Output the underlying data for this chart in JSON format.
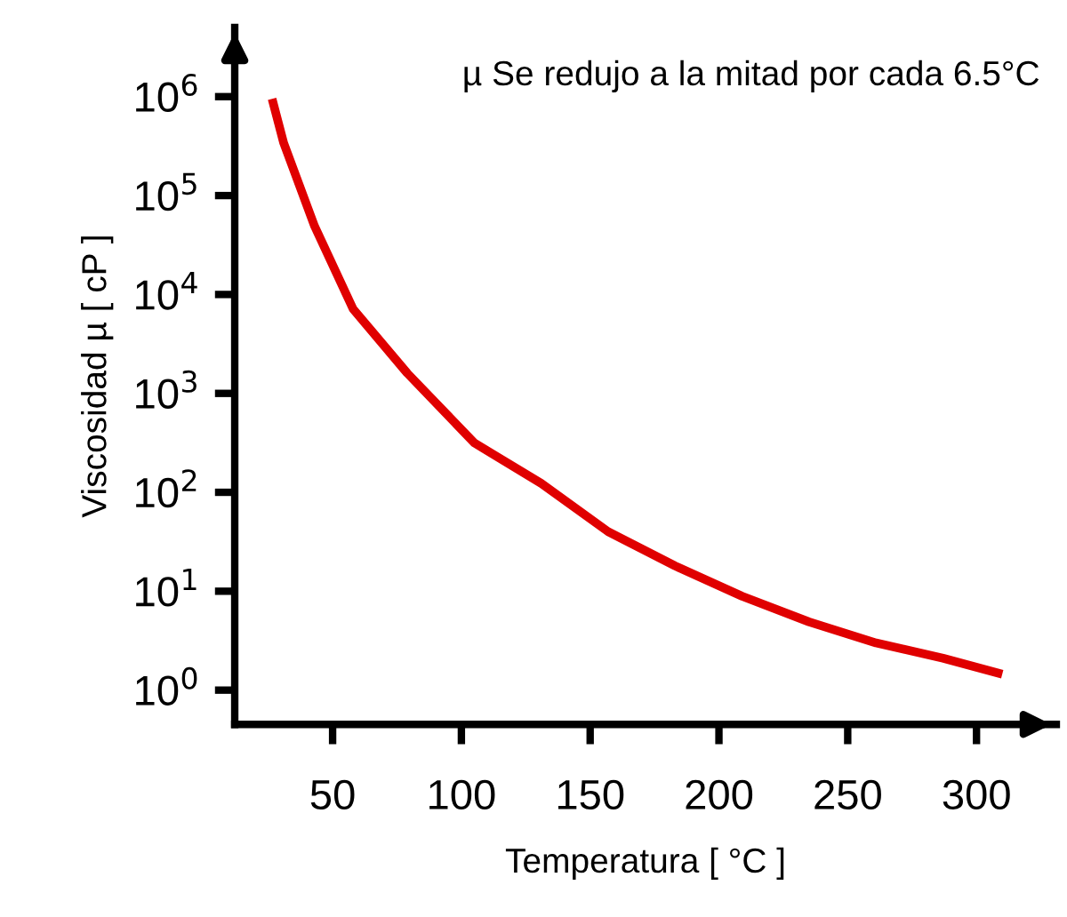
{
  "chart_data": {
    "type": "line",
    "xlabel": "Temperatura [ °C ]",
    "ylabel": "Viscosidad µ [ cP ]",
    "annotations": [
      "µ Se redujo a la mitad por cada 6.5°C"
    ],
    "log": "y",
    "grid": false,
    "marker": "none",
    "line_style": "solid",
    "xlim": [
      12,
      331
    ],
    "ylim": [
      0.45,
      5000000
    ],
    "xticks": [
      50,
      100,
      150,
      200,
      250,
      300
    ],
    "yticks": [
      {
        "value": 1,
        "label": "10$^{0}$"
      },
      {
        "value": 10,
        "label": "10$^{1}$"
      },
      {
        "value": 100,
        "label": "10$^{2}$"
      },
      {
        "value": 1000,
        "label": "10$^{3}$"
      },
      {
        "value": 10000,
        "label": "10$^{4}$"
      },
      {
        "value": 100000,
        "label": "10$^{5}$"
      },
      {
        "value": 1000000,
        "label": "10$^{6}$"
      }
    ],
    "x": [
      26.5,
      31,
      43,
      58,
      79,
      105,
      131,
      157,
      183,
      209,
      235,
      261,
      287,
      310
    ],
    "series": [
      {
        "color": "#e00000",
        "values": [
          950000,
          340000,
          49000,
          7100,
          1600,
          316,
          123,
          40,
          18,
          8.9,
          4.9,
          3.0,
          2.1,
          1.45
        ]
      }
    ]
  }
}
